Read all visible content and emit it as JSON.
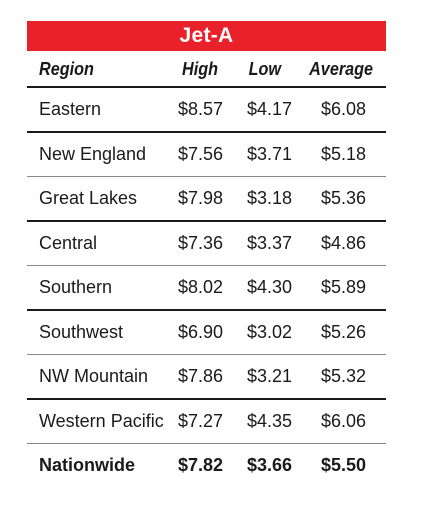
{
  "table": {
    "title": "Jet-A",
    "headers": {
      "region": "Region",
      "high": "High",
      "low": "Low",
      "average": "Average"
    },
    "rows": [
      {
        "region": "Eastern",
        "high": "$8.57",
        "low": "$4.17",
        "average": "$6.08"
      },
      {
        "region": "New England",
        "high": "$7.56",
        "low": "$3.71",
        "average": "$5.18"
      },
      {
        "region": "Great Lakes",
        "high": "$7.98",
        "low": "$3.18",
        "average": "$5.36"
      },
      {
        "region": "Central",
        "high": "$7.36",
        "low": "$3.37",
        "average": "$4.86"
      },
      {
        "region": "Southern",
        "high": "$8.02",
        "low": "$4.30",
        "average": "$5.89"
      },
      {
        "region": "Southwest",
        "high": "$6.90",
        "low": "$3.02",
        "average": "$5.26"
      },
      {
        "region": "NW Mountain",
        "high": "$7.86",
        "low": "$3.21",
        "average": "$5.32"
      },
      {
        "region": "Western Pacific",
        "high": "$7.27",
        "low": "$4.35",
        "average": "$6.06"
      },
      {
        "region": "Nationwide",
        "high": "$7.82",
        "low": "$3.66",
        "average": "$5.50"
      }
    ]
  },
  "colors": {
    "title_bar": "#e8212b",
    "title_text": "#ffffff",
    "rule_dark": "#1a1a1a",
    "rule_light": "#888888"
  }
}
